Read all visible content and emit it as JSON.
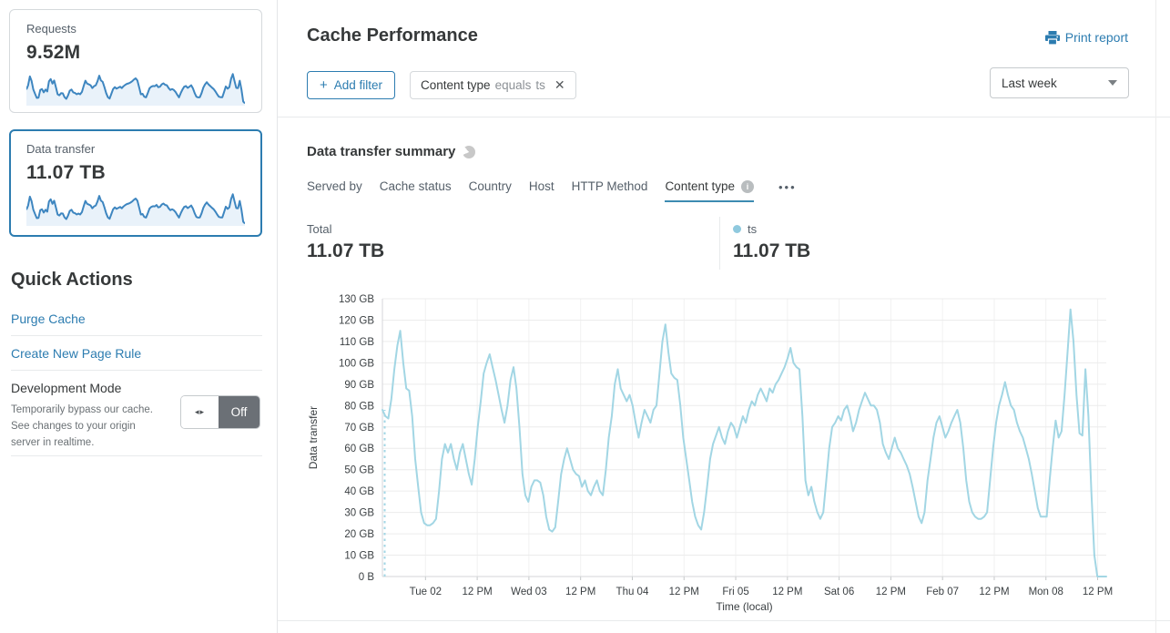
{
  "colors": {
    "accent": "#2c7cb0",
    "series_line": "#a2d6e4",
    "legend_dot": "#8fc9de",
    "spark_stroke": "#3e86c0",
    "spark_fill": "#e9f2fa",
    "tab_underline": "#3d8bb1",
    "toggle_dark": "#6b7076",
    "grid": "#ececec",
    "axis": "#d4d6d8"
  },
  "sidebar": {
    "cards": [
      {
        "label": "Requests",
        "value": "9.52M",
        "spark": [
          60,
          78,
          115,
          96,
          60,
          42,
          25,
          26,
          58,
          62,
          48,
          60,
          52,
          95,
          104,
          85,
          98,
          70,
          40,
          36,
          45,
          44,
          28,
          21,
          35,
          55,
          60,
          48,
          46,
          40,
          44,
          40,
          50,
          75,
          97,
          85,
          82,
          78,
          66,
          74,
          78,
          95,
          118,
          98,
          92,
          70,
          45,
          28,
          22,
          42,
          62,
          70,
          64,
          68,
          72,
          66,
          74,
          80,
          84,
          86,
          90,
          95,
          102,
          107,
          98,
          70,
          40,
          42,
          30,
          27,
          45,
          65,
          72,
          75,
          74,
          80,
          70,
          72,
          82,
          86,
          80,
          78,
          66,
          58,
          62,
          58,
          50,
          38,
          27,
          45,
          60,
          72,
          75,
          67,
          72,
          78,
          65,
          45,
          30,
          27,
          28,
          45,
          68,
          82,
          91,
          82,
          75,
          68,
          62,
          52,
          40,
          30,
          28,
          28,
          50,
          73,
          64,
          70,
          105,
          125,
          95,
          67,
          66,
          97,
          60,
          10,
          2
        ]
      },
      {
        "label": "Data transfer",
        "value": "11.07 TB",
        "spark": [
          60,
          78,
          115,
          96,
          60,
          42,
          25,
          26,
          58,
          62,
          48,
          60,
          52,
          95,
          104,
          85,
          98,
          70,
          40,
          36,
          45,
          44,
          28,
          21,
          35,
          55,
          60,
          48,
          46,
          40,
          44,
          40,
          50,
          75,
          97,
          85,
          82,
          78,
          66,
          74,
          78,
          95,
          118,
          98,
          92,
          70,
          45,
          28,
          22,
          42,
          62,
          70,
          64,
          68,
          72,
          66,
          74,
          80,
          84,
          86,
          90,
          95,
          102,
          107,
          98,
          70,
          40,
          42,
          30,
          27,
          45,
          65,
          72,
          75,
          74,
          80,
          70,
          72,
          82,
          86,
          80,
          78,
          66,
          58,
          62,
          58,
          50,
          38,
          27,
          45,
          60,
          72,
          75,
          67,
          72,
          78,
          65,
          45,
          30,
          27,
          28,
          45,
          68,
          82,
          91,
          82,
          75,
          68,
          62,
          52,
          40,
          30,
          28,
          28,
          50,
          73,
          64,
          70,
          105,
          125,
          95,
          67,
          66,
          97,
          60,
          10,
          2
        ]
      }
    ],
    "quick_actions": {
      "title": "Quick Actions",
      "links": [
        {
          "label": "Purge Cache"
        },
        {
          "label": "Create New Page Rule"
        }
      ],
      "dev_mode": {
        "label": "Development Mode",
        "description": "Temporarily bypass our cache. See changes to your origin server in realtime.",
        "toggle_icon": "◂▸",
        "toggle_state": "Off"
      }
    }
  },
  "header": {
    "title": "Cache Performance",
    "print_label": "Print report"
  },
  "filters": {
    "add_icon": "+",
    "add_label": "Add filter",
    "chip": {
      "field": "Content type",
      "operator": "equals",
      "value": "ts",
      "close_icon": "✕"
    },
    "time_range": "Last week"
  },
  "summary": {
    "title": "Data transfer summary",
    "tabs": [
      {
        "label": "Served by"
      },
      {
        "label": "Cache status"
      },
      {
        "label": "Country"
      },
      {
        "label": "Host"
      },
      {
        "label": "HTTP Method"
      },
      {
        "label": "Content type"
      }
    ],
    "info_icon_glyph": "i",
    "more_icon": "•••",
    "total_label": "Total",
    "total_value": "11.07 TB",
    "legend_name": "ts",
    "legend_value": "11.07 TB"
  },
  "chart_data": {
    "type": "line",
    "series_name": "ts",
    "unit": "GB",
    "ylabel": "Data transfer",
    "xlabel": "Time (local)",
    "ylim_gb": [
      0,
      130
    ],
    "y_ticks": [
      "0 B",
      "10 GB",
      "20 GB",
      "30 GB",
      "40 GB",
      "50 GB",
      "60 GB",
      "70 GB",
      "80 GB",
      "90 GB",
      "100 GB",
      "110 GB",
      "120 GB",
      "130 GB"
    ],
    "x_ticks": [
      "Tue 02",
      "12 PM",
      "Wed 03",
      "12 PM",
      "Thu 04",
      "12 PM",
      "Fri 05",
      "12 PM",
      "Sat 06",
      "12 PM",
      "Feb 07",
      "12 PM",
      "Mon 08",
      "12 PM"
    ],
    "x_tick_hours": [
      10,
      22,
      34,
      46,
      58,
      70,
      82,
      94,
      106,
      118,
      130,
      142,
      154,
      166
    ],
    "total_hours": 168,
    "legend_position": "top-right",
    "grid": true,
    "values_gb": [
      78,
      75,
      74,
      83,
      97,
      108,
      115,
      100,
      88,
      87,
      75,
      55,
      42,
      30,
      25,
      24,
      24,
      25,
      27,
      40,
      55,
      62,
      58,
      62,
      55,
      50,
      58,
      62,
      55,
      48,
      43,
      55,
      70,
      82,
      95,
      100,
      104,
      98,
      92,
      85,
      78,
      72,
      80,
      92,
      98,
      88,
      70,
      48,
      38,
      35,
      42,
      45,
      45,
      44,
      38,
      28,
      22,
      21,
      23,
      35,
      48,
      55,
      60,
      55,
      50,
      48,
      47,
      42,
      45,
      40,
      38,
      42,
      45,
      40,
      38,
      50,
      65,
      75,
      90,
      97,
      88,
      85,
      82,
      85,
      80,
      72,
      65,
      72,
      78,
      75,
      72,
      78,
      80,
      95,
      110,
      118,
      105,
      95,
      93,
      92,
      80,
      65,
      55,
      45,
      35,
      28,
      24,
      22,
      30,
      42,
      55,
      62,
      66,
      70,
      65,
      62,
      68,
      72,
      70,
      65,
      70,
      75,
      72,
      78,
      82,
      80,
      85,
      88,
      85,
      82,
      88,
      86,
      90,
      92,
      95,
      98,
      102,
      107,
      100,
      98,
      97,
      75,
      45,
      38,
      42,
      35,
      30,
      27,
      30,
      45,
      60,
      70,
      72,
      75,
      73,
      78,
      80,
      75,
      68,
      72,
      78,
      82,
      86,
      83,
      80,
      80,
      78,
      72,
      62,
      58,
      55,
      60,
      65,
      60,
      58,
      55,
      52,
      48,
      42,
      35,
      28,
      25,
      30,
      45,
      55,
      65,
      72,
      75,
      70,
      65,
      68,
      72,
      75,
      78,
      72,
      60,
      45,
      35,
      30,
      28,
      27,
      27,
      28,
      30,
      45,
      60,
      72,
      80,
      85,
      91,
      85,
      80,
      78,
      72,
      68,
      65,
      60,
      55,
      48,
      40,
      32,
      28,
      28,
      28,
      45,
      60,
      73,
      65,
      68,
      85,
      105,
      125,
      110,
      85,
      67,
      66,
      97,
      75,
      40,
      10,
      0,
      0,
      0,
      0
    ]
  }
}
